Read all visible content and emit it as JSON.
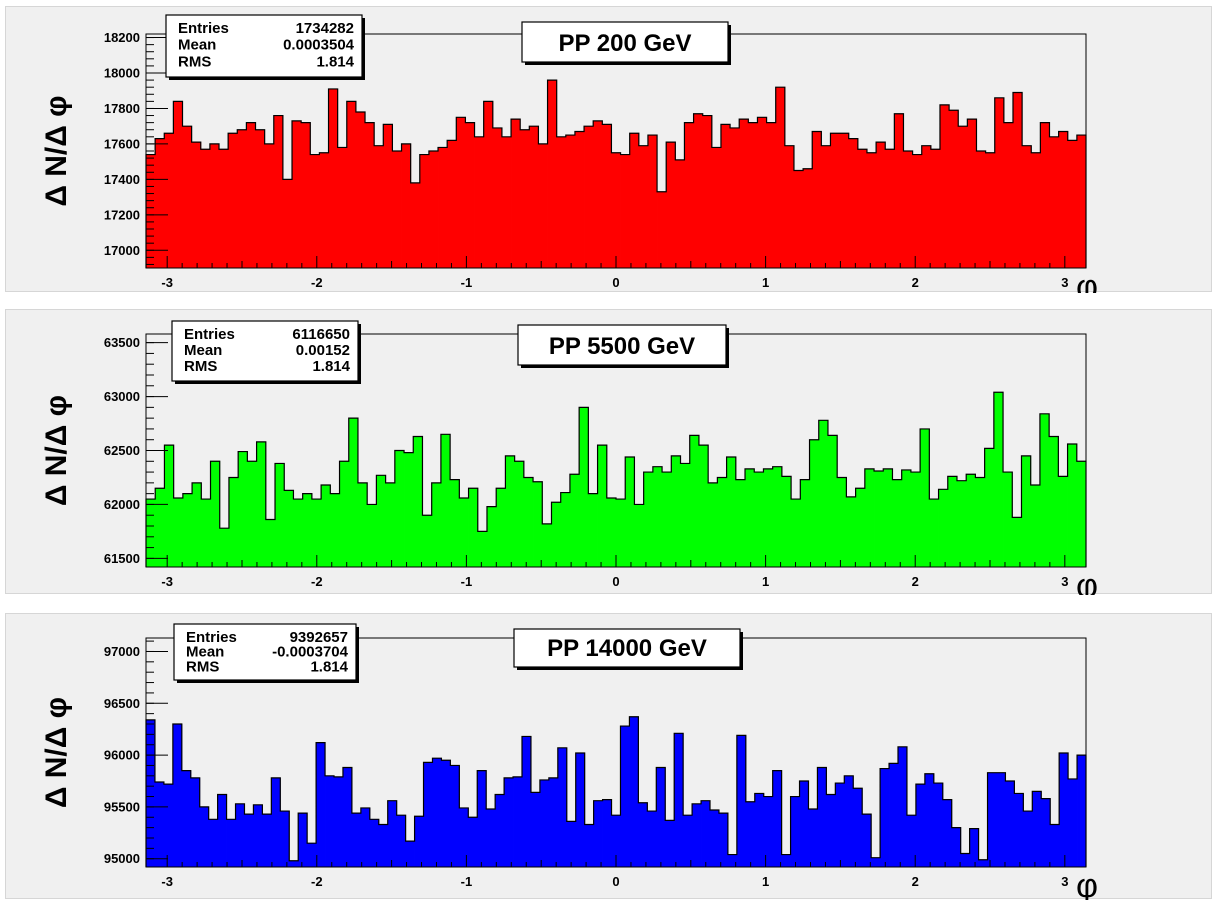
{
  "chart_data": [
    {
      "type": "bar",
      "title": "PP 200 GeV",
      "ylabel": "Δ N/Δ φ",
      "xlabel": "φ",
      "xlim": [
        -3.1416,
        3.1416
      ],
      "ylim": [
        16900,
        18220
      ],
      "xticks": [
        "-3",
        "-2",
        "-1",
        "0",
        "1",
        "2",
        "3"
      ],
      "yticks": [
        "17000",
        "17200",
        "17400",
        "17600",
        "17800",
        "18000",
        "18200"
      ],
      "fill_color": "#ff0000",
      "stats": {
        "entries_label": "Entries",
        "entries": "1734282",
        "mean_label": "Mean",
        "mean": "0.0003504",
        "rms_label": "RMS",
        "rms": "1.814"
      },
      "values": [
        17540,
        17630,
        17660,
        17840,
        17700,
        17610,
        17570,
        17600,
        17570,
        17660,
        17680,
        17720,
        17680,
        17600,
        17760,
        17400,
        17730,
        17720,
        17540,
        17550,
        17910,
        17580,
        17840,
        17780,
        17720,
        17590,
        17710,
        17560,
        17600,
        17380,
        17540,
        17560,
        17580,
        17620,
        17750,
        17720,
        17640,
        17840,
        17690,
        17640,
        17740,
        17680,
        17700,
        17600,
        17960,
        17640,
        17650,
        17670,
        17700,
        17730,
        17710,
        17550,
        17540,
        17660,
        17590,
        17650,
        17330,
        17610,
        17510,
        17720,
        17770,
        17760,
        17580,
        17710,
        17690,
        17740,
        17720,
        17750,
        17720,
        17920,
        17590,
        17450,
        17460,
        17670,
        17590,
        17660,
        17660,
        17630,
        17570,
        17550,
        17610,
        17570,
        17770,
        17560,
        17540,
        17590,
        17570,
        17820,
        17790,
        17700,
        17740,
        17560,
        17550,
        17860,
        17720,
        17890,
        17590,
        17550,
        17720,
        17640,
        17670,
        17620,
        17650
      ]
    },
    {
      "type": "bar",
      "title": "PP 5500 GeV",
      "ylabel": "Δ N/Δ φ",
      "xlabel": "φ",
      "xlim": [
        -3.1416,
        3.1416
      ],
      "ylim": [
        61420,
        63580
      ],
      "xticks": [
        "-3",
        "-2",
        "-1",
        "0",
        "1",
        "2",
        "3"
      ],
      "yticks": [
        "61500",
        "62000",
        "62500",
        "63000",
        "63500"
      ],
      "fill_color": "#00ff00",
      "stats": {
        "entries_label": "Entries",
        "entries": "6116650",
        "mean_label": "Mean",
        "mean": "0.00152",
        "rms_label": "RMS",
        "rms": "1.814"
      },
      "values": [
        62050,
        62150,
        62550,
        62060,
        62100,
        62200,
        62050,
        62400,
        61780,
        62250,
        62490,
        62400,
        62580,
        61860,
        62380,
        62130,
        62050,
        62100,
        62050,
        62180,
        62100,
        62400,
        62800,
        62200,
        62000,
        62270,
        62200,
        62500,
        62480,
        62630,
        61900,
        62200,
        62650,
        62230,
        62060,
        62150,
        61750,
        61980,
        62150,
        62450,
        62400,
        62250,
        62210,
        61820,
        62020,
        62110,
        62280,
        62900,
        62100,
        62550,
        62060,
        62050,
        62440,
        62000,
        62300,
        62350,
        62300,
        62450,
        62380,
        62640,
        62550,
        62200,
        62250,
        62440,
        62230,
        62330,
        62300,
        62330,
        62350,
        62260,
        62050,
        62230,
        62600,
        62780,
        62640,
        62250,
        62070,
        62150,
        62330,
        62310,
        62330,
        62230,
        62320,
        62300,
        62700,
        62050,
        62140,
        62260,
        62220,
        62280,
        62250,
        62520,
        63040,
        62300,
        61880,
        62450,
        62180,
        62840,
        62630,
        62260,
        62560,
        62400
      ]
    },
    {
      "type": "bar",
      "title": "PP 14000 GeV",
      "ylabel": "Δ N/Δ φ",
      "xlabel": "φ",
      "xlim": [
        -3.1416,
        3.1416
      ],
      "ylim": [
        94920,
        97130
      ],
      "xticks": [
        "-3",
        "-2",
        "-1",
        "0",
        "1",
        "2",
        "3"
      ],
      "yticks": [
        "95000",
        "95500",
        "96000",
        "96500",
        "97000"
      ],
      "fill_color": "#0000ff",
      "stats": {
        "entries_label": "Entries",
        "entries": "9392657",
        "mean_label": "Mean",
        "mean": "-0.0003704",
        "rms_label": "RMS",
        "rms": "1.814"
      },
      "values": [
        96340,
        95740,
        95720,
        96300,
        95850,
        95780,
        95500,
        95380,
        95620,
        95380,
        95530,
        95430,
        95520,
        95430,
        95780,
        95460,
        94980,
        95440,
        95150,
        96120,
        95800,
        95790,
        95880,
        95440,
        95490,
        95380,
        95330,
        95560,
        95420,
        95170,
        95410,
        95930,
        95970,
        95950,
        95900,
        95490,
        95400,
        95850,
        95480,
        95620,
        95780,
        95790,
        96180,
        95640,
        95760,
        95780,
        96070,
        95360,
        96020,
        95330,
        95560,
        95570,
        95420,
        96280,
        96370,
        95540,
        95460,
        95880,
        95370,
        96210,
        95420,
        95530,
        95560,
        95470,
        95440,
        95040,
        96190,
        95550,
        95630,
        95600,
        95850,
        95040,
        95600,
        95750,
        95480,
        95880,
        95620,
        95730,
        95800,
        95680,
        95430,
        95010,
        95870,
        95920,
        96080,
        95420,
        95720,
        95820,
        95730,
        95570,
        95300,
        95050,
        95290,
        94990,
        95830,
        95830,
        95750,
        95630,
        95460,
        95650,
        95580,
        95330,
        96020,
        95770,
        96000
      ]
    }
  ]
}
